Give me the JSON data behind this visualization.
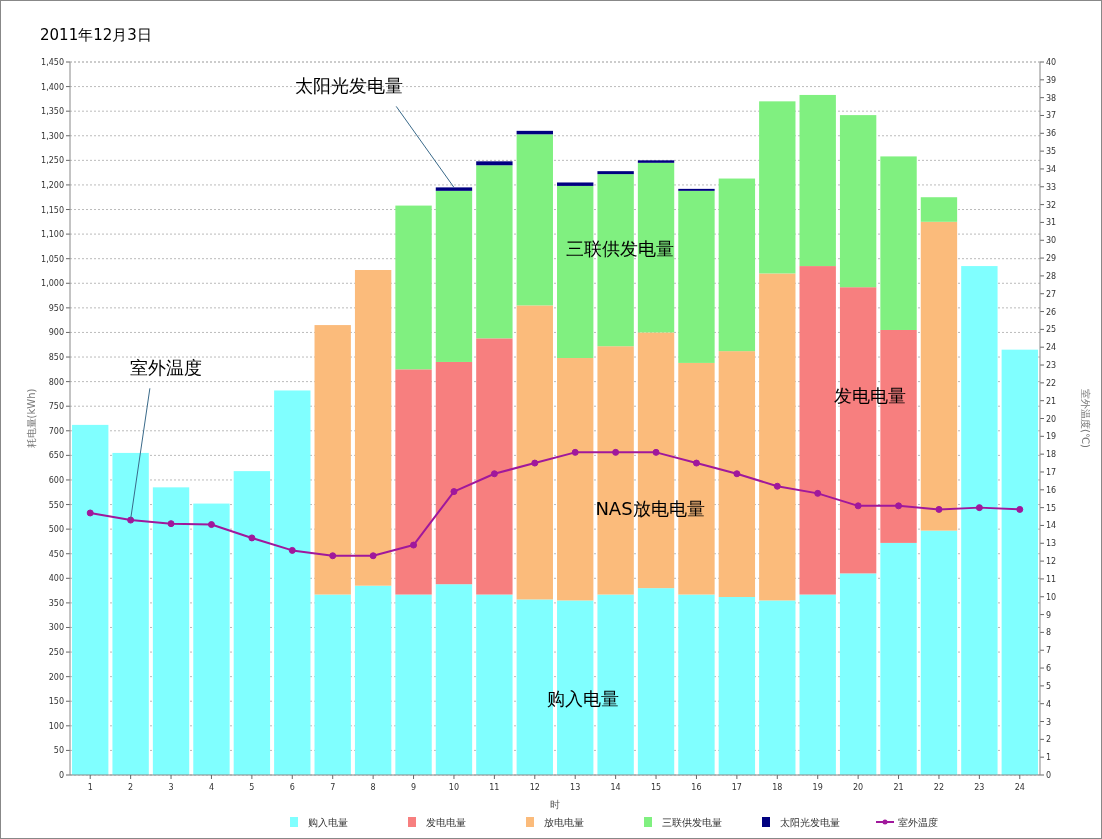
{
  "chart_data": {
    "type": "bar",
    "stacked": true,
    "title": "2011年12月3日",
    "xlabel": "时",
    "ylabel": "耗电量(kWh)",
    "y2label": "室外温度(℃)",
    "categories": [
      "1",
      "2",
      "3",
      "4",
      "5",
      "6",
      "7",
      "8",
      "9",
      "10",
      "11",
      "12",
      "13",
      "14",
      "15",
      "16",
      "17",
      "18",
      "19",
      "20",
      "21",
      "22",
      "23",
      "24"
    ],
    "series": [
      {
        "name": "购入电量",
        "color": "#80ffff",
        "values": [
          712,
          655,
          585,
          552,
          618,
          782,
          367,
          385,
          367,
          388,
          367,
          357,
          355,
          367,
          380,
          367,
          362,
          355,
          367,
          410,
          472,
          497,
          1035,
          865
        ]
      },
      {
        "name": "发电电量",
        "color": "#f77f7f",
        "values": [
          null,
          null,
          null,
          null,
          null,
          null,
          null,
          null,
          458,
          452,
          521,
          null,
          null,
          null,
          null,
          null,
          null,
          null,
          668,
          582,
          433,
          null,
          null,
          null
        ]
      },
      {
        "name": "放电电量",
        "color": "#fbbb7b",
        "values": [
          null,
          null,
          null,
          null,
          null,
          null,
          548,
          642,
          null,
          null,
          null,
          598,
          493,
          505,
          520,
          471,
          500,
          665,
          null,
          null,
          null,
          628,
          null,
          null
        ]
      },
      {
        "name": "三联供发电量",
        "color": "#80f080",
        "values": [
          null,
          null,
          null,
          null,
          null,
          null,
          null,
          null,
          333,
          348,
          352,
          348,
          350,
          350,
          345,
          350,
          351,
          350,
          348,
          350,
          353,
          50,
          null,
          null
        ]
      },
      {
        "name": "太阳光发电量",
        "color": "#000080",
        "values": [
          null,
          null,
          null,
          null,
          null,
          null,
          null,
          null,
          null,
          7,
          8,
          7,
          7,
          6,
          5,
          4,
          null,
          null,
          null,
          null,
          null,
          null,
          null,
          null
        ]
      },
      {
        "name": "室外温度",
        "type": "line",
        "axis": "y2",
        "color": "#a0189c",
        "values": [
          14.7,
          14.3,
          14.1,
          14.05,
          13.3,
          12.6,
          12.3,
          12.3,
          12.9,
          15.9,
          16.9,
          17.5,
          18.1,
          18.1,
          18.1,
          17.5,
          16.9,
          16.2,
          15.8,
          15.1,
          15.1,
          14.9,
          15.0,
          14.9
        ]
      }
    ],
    "ylim": [
      0,
      1450
    ],
    "yticks": [
      0,
      50,
      100,
      150,
      200,
      250,
      300,
      350,
      400,
      450,
      500,
      550,
      600,
      650,
      700,
      750,
      800,
      850,
      900,
      950,
      {
        "value": 1000,
        "label": "1,000"
      },
      {
        "value": 1050,
        "label": "1,050"
      },
      {
        "value": 1100,
        "label": "1,100"
      },
      {
        "value": 1150,
        "label": "1,150"
      },
      {
        "value": 1200,
        "label": "1,200"
      },
      {
        "value": 1250,
        "label": "1,250"
      },
      {
        "value": 1300,
        "label": "1,300"
      },
      {
        "value": 1350,
        "label": "1,350"
      },
      {
        "value": 1400,
        "label": "1,400"
      },
      {
        "value": 1450,
        "label": "1,450"
      }
    ],
    "y2lim": [
      0,
      40
    ],
    "y2ticks": [
      0,
      1,
      2,
      3,
      4,
      5,
      6,
      7,
      8,
      9,
      10,
      11,
      12,
      13,
      14,
      15,
      16,
      17,
      18,
      19,
      20,
      21,
      22,
      23,
      24,
      25,
      26,
      27,
      28,
      29,
      30,
      31,
      32,
      33,
      34,
      35,
      36,
      37,
      38,
      39,
      40
    ],
    "grid": "y",
    "legend": "bottom",
    "marker": "circle",
    "line_style": "solid",
    "annotations": [
      {
        "text": "太阳光发电量",
        "x": "10",
        "y": 1195
      },
      "三联供发电量",
      {
        "text": "室外温度",
        "x": "2",
        "y": 520
      },
      "发电电量",
      "NAS放电电量",
      "购入电量"
    ]
  }
}
